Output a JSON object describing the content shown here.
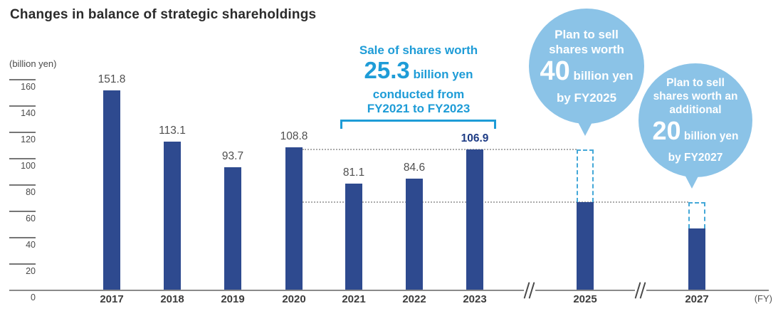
{
  "title": "Changes in balance of strategic shareholdings",
  "colors": {
    "bar": "#2e4a8f",
    "cyan": "#1e9cd7",
    "dashed_box": "#44a8d8",
    "bubble": "#8bc3e7",
    "navy_value_label": "#1e3c85"
  },
  "chart_data": {
    "type": "bar",
    "title": "Changes in balance of strategic shareholdings",
    "ylabel": "(billion yen)",
    "xlabel": "(FY)",
    "ylim": [
      0,
      160
    ],
    "y_ticks": [
      0,
      20,
      40,
      60,
      80,
      100,
      120,
      140,
      160
    ],
    "grid": false,
    "legend": null,
    "categories": [
      "2017",
      "2018",
      "2019",
      "2020",
      "2021",
      "2022",
      "2023",
      "2025",
      "2027"
    ],
    "series": [
      {
        "name": "Balance of strategic shareholdings",
        "values": [
          151.8,
          113.1,
          93.7,
          108.8,
          81.1,
          84.6,
          106.9,
          66.9,
          46.9
        ]
      }
    ],
    "value_labels": [
      "151.8",
      "113.1",
      "93.7",
      "108.8",
      "81.1",
      "84.6",
      "106.9"
    ],
    "highlight_year": "2023",
    "planned_sales": [
      {
        "category": "2025",
        "from": 66.9,
        "to": 106.9
      },
      {
        "category": "2027",
        "from": 46.9,
        "to": 66.9
      }
    ],
    "guide_levels": [
      106.9,
      66.9
    ],
    "axis_breaks_before": [
      "2025",
      "2027"
    ]
  },
  "annotations": {
    "sale_note": {
      "line1": "Sale of shares worth",
      "big_number": "25.3",
      "big_suffix": " billion yen",
      "line3": "conducted from",
      "line4": "FY2021 to FY2023"
    },
    "bubble_2025": {
      "line1": "Plan to sell",
      "line2": "shares worth",
      "big_number": "40",
      "big_suffix": " billion yen",
      "line3": "by FY2025"
    },
    "bubble_2027": {
      "line1": "Plan to sell",
      "line2": "shares worth an",
      "line3": "additional",
      "big_number": "20",
      "big_suffix": " billion yen",
      "line4": "by FY2027"
    }
  }
}
